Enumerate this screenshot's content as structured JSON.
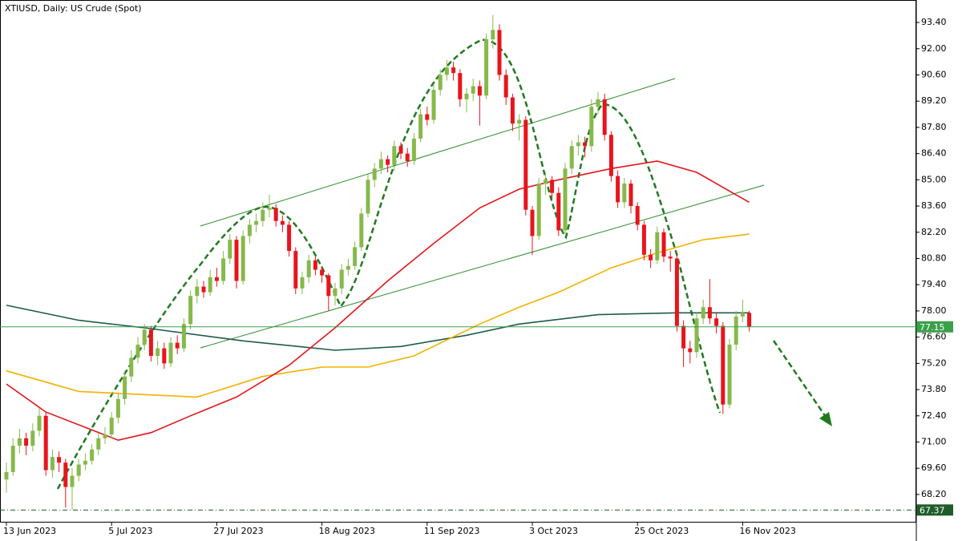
{
  "chart_data": {
    "type": "candlestick",
    "title": "XTIUSD, Daily:  US Crude (Spot)",
    "categories": [
      "13 Jun 2023",
      null,
      null,
      null,
      null,
      null,
      null,
      null,
      null,
      null,
      null,
      null,
      null,
      null,
      null,
      null,
      "5 Jul 2023",
      null,
      null,
      null,
      null,
      null,
      null,
      null,
      null,
      null,
      null,
      null,
      null,
      null,
      null,
      null,
      "27 Jul 2023",
      null,
      null,
      null,
      null,
      null,
      null,
      null,
      null,
      null,
      null,
      null,
      null,
      null,
      null,
      null,
      "18 Aug 2023",
      null,
      null,
      null,
      null,
      null,
      null,
      null,
      null,
      null,
      null,
      null,
      null,
      null,
      null,
      null,
      "11 Sep 2023",
      null,
      null,
      null,
      null,
      null,
      null,
      null,
      null,
      null,
      null,
      null,
      null,
      null,
      null,
      null,
      "3 Oct 2023",
      null,
      null,
      null,
      null,
      null,
      null,
      null,
      null,
      null,
      null,
      null,
      null,
      null,
      null,
      null,
      "25 Oct 2023",
      null,
      null,
      null,
      null,
      null,
      null,
      null,
      null,
      null,
      null,
      null,
      null,
      null,
      null,
      null,
      "16 Nov 2023",
      null
    ],
    "ohlc": [
      [
        69.0,
        69.9,
        68.3,
        69.4
      ],
      [
        69.4,
        71.2,
        69.2,
        70.8
      ],
      [
        70.8,
        71.7,
        70.4,
        71.2
      ],
      [
        71.2,
        71.5,
        70.3,
        70.8
      ],
      [
        70.8,
        72.0,
        70.5,
        71.6
      ],
      [
        71.6,
        72.8,
        71.3,
        72.4
      ],
      [
        72.4,
        72.6,
        69.2,
        69.5
      ],
      [
        69.5,
        70.6,
        69.1,
        70.2
      ],
      [
        70.2,
        70.5,
        69.4,
        69.9
      ],
      [
        69.9,
        70.1,
        67.5,
        68.6
      ],
      [
        68.6,
        69.6,
        67.4,
        69.2
      ],
      [
        69.2,
        70.1,
        68.9,
        69.8
      ],
      [
        69.8,
        70.4,
        69.5,
        70.0
      ],
      [
        70.0,
        70.9,
        69.8,
        70.6
      ],
      [
        70.6,
        71.5,
        70.3,
        71.2
      ],
      [
        71.2,
        71.8,
        70.9,
        71.4
      ],
      [
        71.4,
        72.6,
        71.2,
        72.3
      ],
      [
        72.3,
        73.6,
        72.0,
        73.3
      ],
      [
        73.3,
        74.8,
        73.0,
        74.5
      ],
      [
        74.5,
        75.9,
        74.2,
        75.5
      ],
      [
        75.5,
        76.6,
        75.2,
        76.2
      ],
      [
        76.2,
        77.3,
        75.9,
        77.0
      ],
      [
        77.0,
        77.2,
        75.3,
        75.6
      ],
      [
        75.6,
        76.4,
        75.1,
        76.0
      ],
      [
        76.0,
        76.3,
        74.9,
        75.2
      ],
      [
        75.2,
        76.6,
        75.0,
        76.3
      ],
      [
        76.3,
        76.7,
        75.7,
        76.0
      ],
      [
        76.0,
        77.6,
        75.8,
        77.3
      ],
      [
        77.3,
        79.1,
        77.0,
        78.8
      ],
      [
        78.8,
        79.7,
        78.4,
        79.3
      ],
      [
        79.3,
        79.6,
        78.7,
        79.0
      ],
      [
        79.0,
        80.2,
        78.8,
        79.8
      ],
      [
        79.8,
        80.3,
        79.3,
        79.6
      ],
      [
        79.6,
        81.2,
        79.4,
        80.8
      ],
      [
        80.8,
        82.1,
        80.5,
        81.8
      ],
      [
        81.8,
        82.0,
        79.2,
        79.6
      ],
      [
        79.6,
        82.3,
        79.4,
        82.0
      ],
      [
        82.0,
        82.9,
        81.6,
        82.6
      ],
      [
        82.6,
        83.2,
        82.2,
        82.8
      ],
      [
        82.8,
        83.8,
        82.5,
        83.4
      ],
      [
        83.4,
        84.2,
        83.0,
        83.5
      ],
      [
        83.5,
        83.7,
        82.5,
        82.8
      ],
      [
        82.8,
        83.1,
        82.2,
        82.6
      ],
      [
        82.6,
        82.8,
        80.9,
        81.2
      ],
      [
        81.2,
        81.4,
        78.9,
        79.2
      ],
      [
        79.2,
        80.1,
        78.9,
        79.8
      ],
      [
        79.8,
        81.0,
        79.5,
        80.7
      ],
      [
        80.7,
        80.9,
        79.9,
        80.2
      ],
      [
        80.2,
        80.4,
        79.5,
        79.9
      ],
      [
        79.9,
        80.0,
        78.0,
        78.8
      ],
      [
        78.8,
        79.5,
        78.3,
        79.2
      ],
      [
        79.2,
        80.5,
        78.9,
        80.2
      ],
      [
        80.2,
        80.8,
        79.9,
        80.4
      ],
      [
        80.4,
        81.7,
        80.2,
        81.4
      ],
      [
        81.4,
        83.5,
        81.2,
        83.2
      ],
      [
        83.2,
        85.3,
        83.0,
        85.0
      ],
      [
        85.0,
        85.9,
        84.6,
        85.6
      ],
      [
        85.6,
        86.5,
        85.3,
        86.1
      ],
      [
        86.1,
        86.3,
        85.4,
        85.8
      ],
      [
        85.8,
        87.1,
        85.5,
        86.8
      ],
      [
        86.8,
        87.0,
        86.1,
        86.4
      ],
      [
        86.4,
        86.7,
        85.7,
        86.0
      ],
      [
        86.0,
        87.5,
        85.8,
        87.2
      ],
      [
        87.2,
        88.8,
        87.0,
        88.5
      ],
      [
        88.5,
        88.9,
        87.9,
        88.2
      ],
      [
        88.2,
        90.1,
        88.0,
        89.8
      ],
      [
        89.8,
        90.9,
        89.5,
        90.6
      ],
      [
        90.6,
        91.4,
        90.3,
        91.0
      ],
      [
        91.0,
        91.3,
        90.3,
        90.7
      ],
      [
        90.7,
        90.9,
        88.9,
        89.3
      ],
      [
        89.3,
        89.9,
        88.6,
        89.6
      ],
      [
        89.6,
        90.4,
        89.2,
        90.0
      ],
      [
        90.0,
        90.3,
        87.9,
        89.5
      ],
      [
        89.5,
        92.8,
        89.3,
        92.5
      ],
      [
        92.5,
        93.8,
        92.0,
        93.0
      ],
      [
        93.0,
        93.3,
        90.3,
        90.6
      ],
      [
        90.6,
        90.9,
        89.0,
        89.4
      ],
      [
        89.4,
        89.6,
        87.6,
        88.0
      ],
      [
        88.0,
        88.5,
        87.1,
        88.2
      ],
      [
        88.2,
        88.4,
        83.1,
        83.4
      ],
      [
        83.4,
        83.6,
        81.0,
        82.0
      ],
      [
        82.0,
        85.1,
        81.8,
        84.8
      ],
      [
        84.8,
        85.4,
        84.2,
        85.0
      ],
      [
        85.0,
        85.2,
        84.0,
        84.3
      ],
      [
        84.3,
        84.6,
        82.0,
        82.3
      ],
      [
        82.3,
        85.9,
        82.1,
        85.6
      ],
      [
        85.6,
        87.1,
        85.3,
        86.8
      ],
      [
        86.8,
        87.4,
        86.3,
        87.0
      ],
      [
        87.0,
        87.3,
        86.2,
        86.8
      ],
      [
        86.8,
        89.3,
        86.5,
        88.9
      ],
      [
        88.9,
        89.7,
        88.5,
        89.3
      ],
      [
        89.3,
        89.6,
        87.1,
        87.4
      ],
      [
        87.4,
        87.6,
        84.9,
        85.2
      ],
      [
        85.2,
        85.5,
        83.5,
        83.8
      ],
      [
        83.8,
        85.1,
        83.5,
        84.8
      ],
      [
        84.8,
        85.0,
        83.2,
        83.6
      ],
      [
        83.6,
        83.8,
        82.3,
        82.6
      ],
      [
        82.6,
        82.8,
        80.7,
        81.0
      ],
      [
        81.0,
        81.3,
        80.3,
        80.7
      ],
      [
        80.7,
        82.5,
        80.5,
        82.2
      ],
      [
        82.2,
        82.4,
        80.6,
        80.9
      ],
      [
        80.9,
        81.2,
        80.1,
        80.8
      ],
      [
        80.8,
        81.0,
        76.9,
        77.2
      ],
      [
        77.2,
        77.5,
        75.0,
        76.0
      ],
      [
        76.0,
        76.4,
        75.2,
        75.8
      ],
      [
        75.8,
        77.9,
        75.5,
        77.6
      ],
      [
        77.6,
        78.6,
        77.3,
        78.2
      ],
      [
        78.2,
        79.7,
        77.3,
        77.6
      ],
      [
        77.6,
        77.9,
        76.8,
        77.2
      ],
      [
        77.2,
        77.4,
        72.5,
        73.0
      ],
      [
        73.0,
        76.5,
        72.8,
        76.2
      ],
      [
        76.2,
        78.0,
        75.9,
        77.7
      ],
      [
        77.7,
        78.6,
        77.4,
        77.9
      ],
      [
        77.9,
        78.0,
        76.9,
        77.15
      ]
    ],
    "up_color": "#86b94a",
    "down_color": "#e8141c",
    "moving_averages": [
      {
        "color": "#1f5c4a",
        "x": [
          0,
          11,
          21,
          36,
          50,
          60,
          70,
          78,
          90,
          102,
          113
        ],
        "values": [
          78.3,
          77.5,
          77.1,
          76.4,
          75.9,
          76.1,
          76.7,
          77.3,
          77.8,
          77.9,
          77.9
        ]
      },
      {
        "color": "#f5b000",
        "x": [
          0,
          11,
          29,
          39,
          48,
          55,
          62,
          72,
          78,
          84,
          92,
          99,
          106,
          113
        ],
        "values": [
          74.8,
          73.7,
          73.4,
          74.5,
          75.0,
          75.0,
          75.6,
          77.3,
          78.2,
          79.0,
          80.3,
          81.1,
          81.8,
          82.1
        ]
      },
      {
        "color": "#e3151b",
        "x": [
          0,
          6,
          17,
          22,
          28,
          35,
          43,
          50,
          58,
          65,
          72,
          78,
          84,
          92,
          99,
          105,
          113
        ],
        "values": [
          74.1,
          72.6,
          71.1,
          71.5,
          72.4,
          73.4,
          75.1,
          77.1,
          79.6,
          81.6,
          83.5,
          84.5,
          85.0,
          85.6,
          86.0,
          85.4,
          83.8
        ]
      }
    ],
    "ylim": [
      66.7,
      94.6
    ],
    "yticks": [
      {
        "value": 68.2,
        "label": "68.20"
      },
      {
        "value": 69.6,
        "label": "69.60"
      },
      {
        "value": 71.0,
        "label": "71.00"
      },
      {
        "value": 72.4,
        "label": "72.40"
      },
      {
        "value": 73.8,
        "label": "73.80"
      },
      {
        "value": 75.2,
        "label": "75.20"
      },
      {
        "value": 76.6,
        "label": "76.60"
      },
      {
        "value": 78.0,
        "label": "78.00"
      },
      {
        "value": 79.4,
        "label": "79.40"
      },
      {
        "value": 80.8,
        "label": "80.80"
      },
      {
        "value": 82.2,
        "label": "82.20"
      },
      {
        "value": 83.6,
        "label": "83.60"
      },
      {
        "value": 85.0,
        "label": "85.00"
      },
      {
        "value": 86.4,
        "label": "86.40"
      },
      {
        "value": 87.8,
        "label": "87.80"
      },
      {
        "value": 89.2,
        "label": "89.20"
      },
      {
        "value": 90.6,
        "label": "90.60"
      },
      {
        "value": 92.0,
        "label": "92.00"
      },
      {
        "value": 93.4,
        "label": "93.40"
      }
    ],
    "last_price": 77.15,
    "low_line": 67.37
  }
}
